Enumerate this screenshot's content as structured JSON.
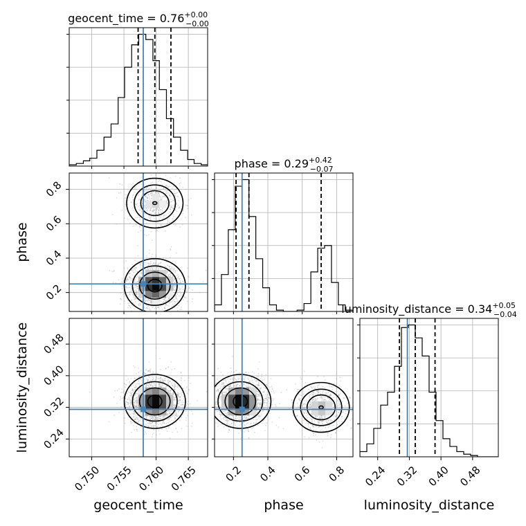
{
  "chart_data": {
    "type": "corner",
    "parameters": [
      "geocent_time",
      "phase",
      "luminosity_distance"
    ],
    "truths": {
      "geocent_time": 0.758,
      "phase": 0.25,
      "luminosity_distance": 0.315
    },
    "ranges": {
      "geocent_time": [
        0.7465,
        0.768
      ],
      "phase": [
        0.09,
        0.895
      ],
      "luminosity_distance": [
        0.195,
        0.545
      ]
    },
    "ticks": {
      "geocent_time": [
        "0.750",
        "0.755",
        "0.760",
        "0.765"
      ],
      "phase": [
        "0.2",
        "0.4",
        "0.6",
        "0.8"
      ],
      "luminosity_distance": [
        "0.24",
        "0.32",
        "0.40",
        "0.48"
      ]
    },
    "titles": {
      "geocent_time": {
        "name": "geocent_time",
        "value": "0.76",
        "plus": "+0.00",
        "minus": "−0.00"
      },
      "phase": {
        "name": "phase",
        "value": "0.29",
        "plus": "+0.42",
        "minus": "−0.07"
      },
      "luminosity_distance": {
        "name": "luminosity_distance",
        "value": "0.34",
        "plus": "+0.05",
        "minus": "−0.04"
      }
    },
    "quantiles": {
      "geocent_time": [
        0.7572,
        0.7598,
        0.7623
      ],
      "phase": [
        0.215,
        0.29,
        0.71
      ],
      "luminosity_distance": [
        0.295,
        0.335,
        0.385
      ]
    },
    "histograms": {
      "geocent_time": {
        "edges": [
          0.7465,
          0.7476,
          0.7487,
          0.7497,
          0.7508,
          0.7519,
          0.753,
          0.7541,
          0.7551,
          0.7562,
          0.7573,
          0.7584,
          0.7595,
          0.7605,
          0.7616,
          0.7627,
          0.7638,
          0.7649,
          0.7659,
          0.767,
          0.768
        ],
        "counts": [
          1,
          2,
          4,
          6,
          12,
          22,
          32,
          52,
          75,
          92,
          100,
          96,
          80,
          58,
          36,
          22,
          12,
          5,
          2,
          1
        ]
      },
      "phase": {
        "edges": [
          0.09,
          0.13,
          0.17,
          0.21,
          0.25,
          0.29,
          0.33,
          0.37,
          0.41,
          0.45,
          0.49,
          0.53,
          0.57,
          0.61,
          0.65,
          0.69,
          0.73,
          0.77,
          0.81,
          0.85,
          0.895
        ],
        "counts": [
          5,
          28,
          62,
          95,
          100,
          72,
          40,
          18,
          5,
          1,
          0,
          0,
          1,
          6,
          30,
          48,
          50,
          22,
          5,
          1
        ]
      },
      "luminosity_distance": {
        "edges": [
          0.195,
          0.2125,
          0.23,
          0.2475,
          0.265,
          0.2825,
          0.3,
          0.3175,
          0.335,
          0.3525,
          0.37,
          0.3875,
          0.405,
          0.4225,
          0.44,
          0.4575,
          0.475,
          0.4925,
          0.51,
          0.5275,
          0.545
        ],
        "counts": [
          4,
          10,
          22,
          40,
          50,
          70,
          100,
          102,
          92,
          78,
          50,
          28,
          14,
          8,
          4,
          2,
          1,
          0,
          0,
          0
        ]
      }
    },
    "modes": {
      "geocent_time-phase": [
        {
          "x": 0.7598,
          "y": 0.72,
          "weight": 0.4
        },
        {
          "x": 0.7598,
          "y": 0.24,
          "weight": 1.0
        }
      ],
      "geocent_time-luminosity_distance": [
        {
          "x": 0.7598,
          "y": 0.335,
          "weight": 1.0
        }
      ],
      "phase-luminosity_distance": [
        {
          "x": 0.24,
          "y": 0.335,
          "weight": 1.0
        },
        {
          "x": 0.71,
          "y": 0.32,
          "weight": 0.45
        }
      ]
    },
    "colors": {
      "truth": "#4682b4",
      "hist": "#000000",
      "grid": "#b0b0b0",
      "density": "#000000"
    },
    "grid": true
  }
}
